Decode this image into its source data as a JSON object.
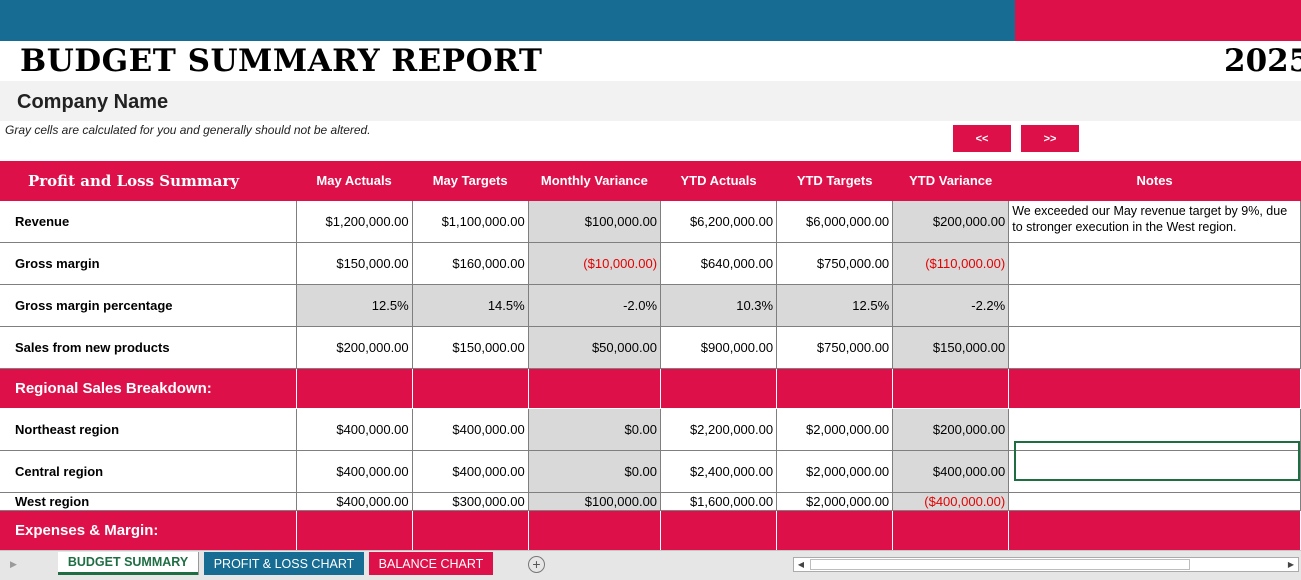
{
  "report": {
    "title": "BUDGET SUMMARY REPORT",
    "year": "2025",
    "company": "Company Name",
    "note": "Gray cells are calculated for you and generally should not be altered.",
    "nav_prev": "<<",
    "nav_next": ">>"
  },
  "colors": {
    "accent": "#dd1049",
    "header_blue": "#166c93",
    "calc_gray": "#d9d9d9",
    "negative": "#e60000",
    "active_tab": "#1f6e43"
  },
  "table": {
    "header": {
      "section": "Profit and Loss Summary",
      "columns": [
        "May Actuals",
        "May Targets",
        "Monthly Variance",
        "YTD Actuals",
        "YTD Targets",
        "YTD Variance",
        "Notes"
      ]
    },
    "pl_rows": [
      {
        "label": "Revenue",
        "values": [
          "$1,200,000.00",
          "$1,100,000.00",
          "$100,000.00",
          "$6,200,000.00",
          "$6,000,000.00",
          "$200,000.00"
        ],
        "note": "We exceeded our May revenue target by 9%, due to stronger execution in the West region."
      },
      {
        "label": "Gross margin",
        "values": [
          "$150,000.00",
          "$160,000.00",
          "($10,000.00)",
          "$640,000.00",
          "$750,000.00",
          "($110,000.00)"
        ],
        "note": ""
      },
      {
        "label": "Gross margin percentage",
        "values": [
          "12.5%",
          "14.5%",
          "-2.0%",
          "10.3%",
          "12.5%",
          "-2.2%"
        ],
        "note": ""
      },
      {
        "label": "Sales from new products",
        "values": [
          "$200,000.00",
          "$150,000.00",
          "$50,000.00",
          "$900,000.00",
          "$750,000.00",
          "$150,000.00"
        ],
        "note": ""
      }
    ],
    "regional_title": "Regional Sales Breakdown:",
    "regional_rows": [
      {
        "label": "Northeast region",
        "values": [
          "$400,000.00",
          "$400,000.00",
          "$0.00",
          "$2,200,000.00",
          "$2,000,000.00",
          "$200,000.00"
        ],
        "note": ""
      },
      {
        "label": "Central region",
        "values": [
          "$400,000.00",
          "$400,000.00",
          "$0.00",
          "$2,400,000.00",
          "$2,000,000.00",
          "$400,000.00"
        ],
        "note": ""
      },
      {
        "label": "West region",
        "values": [
          "$400,000.00",
          "$300,000.00",
          "$100,000.00",
          "$1,600,000.00",
          "$2,000,000.00",
          "($400,000.00)"
        ],
        "note": ""
      }
    ],
    "expenses_title": "Expenses & Margin:"
  },
  "sheet_tabs": [
    {
      "label": "BUDGET SUMMARY",
      "active": true
    },
    {
      "label": "PROFIT & LOSS CHART",
      "active": false
    },
    {
      "label": "BALANCE CHART",
      "active": false
    }
  ],
  "icons": {
    "add_sheet": "plus-circle-icon",
    "scroll_left": "triangle-left-icon",
    "scroll_right": "triangle-right-icon"
  }
}
